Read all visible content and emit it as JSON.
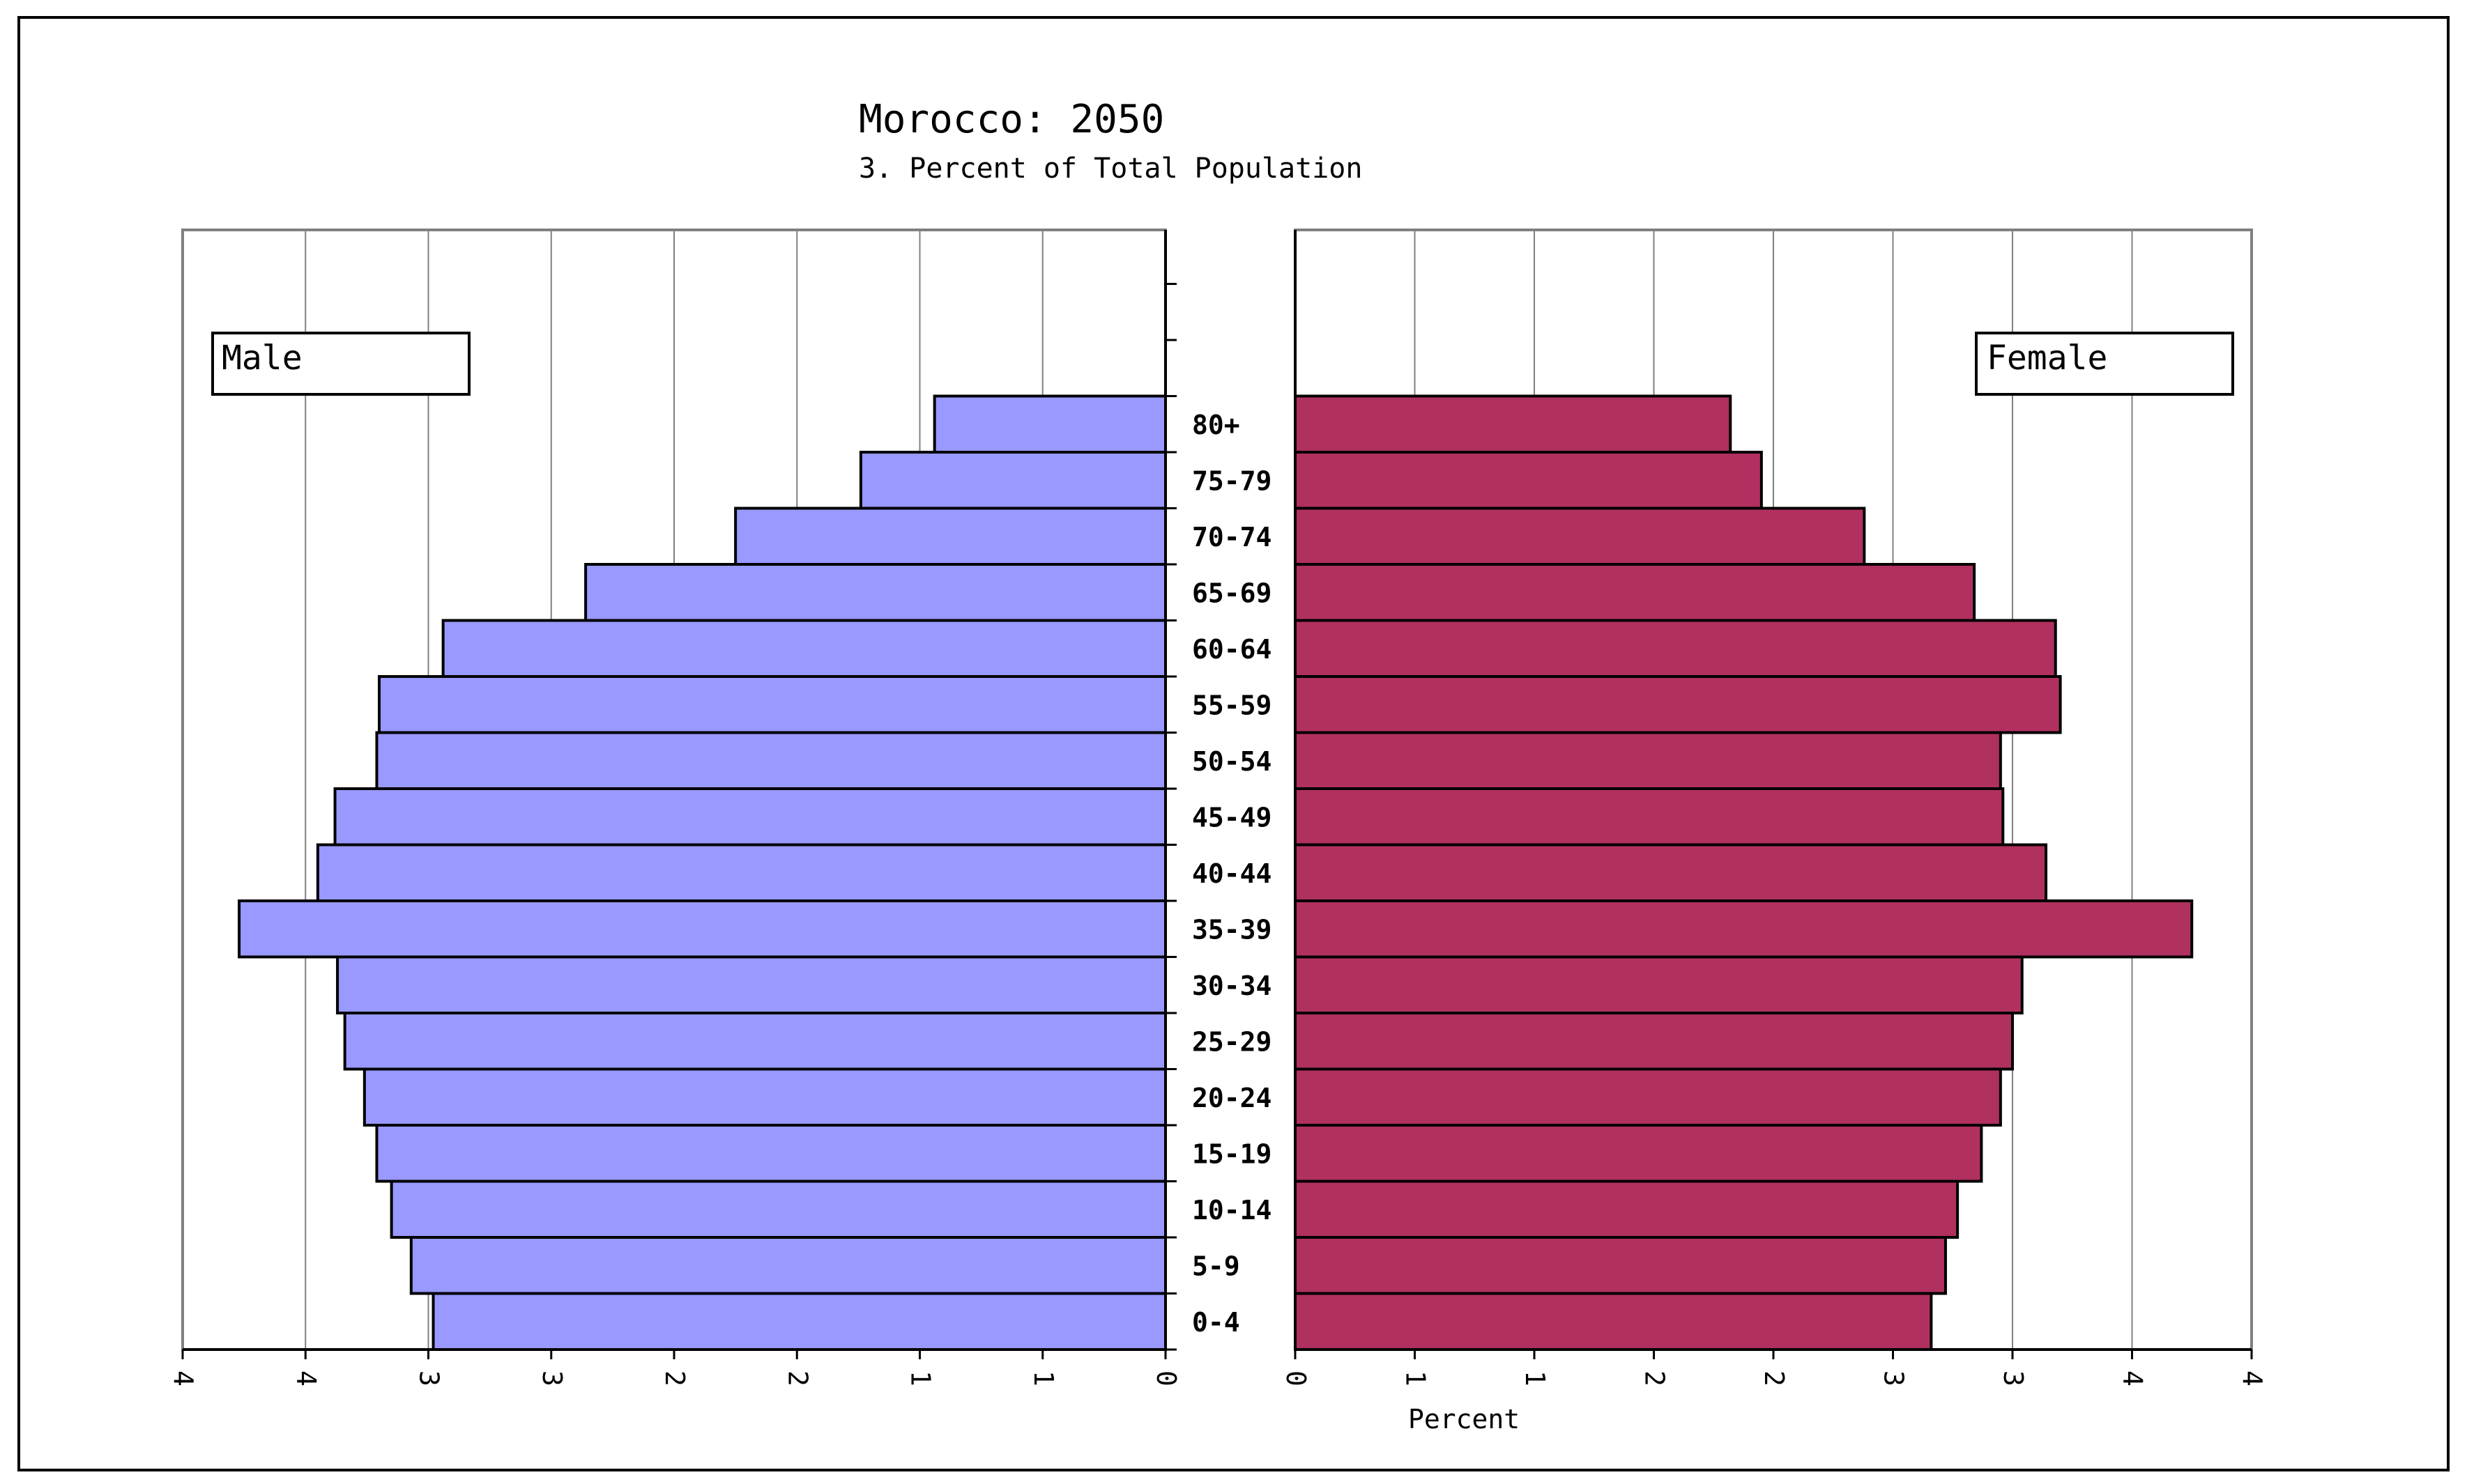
{
  "chart_data": {
    "type": "bar",
    "subtype": "population-pyramid",
    "title": "Morocco: 2050",
    "subtitle": "3. Percent of Total Population",
    "xlabel": "Percent",
    "ylabel": "",
    "age_groups": [
      "0-4",
      "5-9",
      "10-14",
      "15-19",
      "20-24",
      "25-29",
      "30-34",
      "35-39",
      "40-44",
      "45-49",
      "50-54",
      "55-59",
      "60-64",
      "65-69",
      "70-74",
      "75-79",
      "80+"
    ],
    "series": [
      {
        "name": "Male",
        "values": [
          2.98,
          3.07,
          3.15,
          3.21,
          3.26,
          3.34,
          3.37,
          3.77,
          3.45,
          3.38,
          3.21,
          3.2,
          2.94,
          2.36,
          1.75,
          1.24,
          0.94
        ]
      },
      {
        "name": "Female",
        "values": [
          2.66,
          2.72,
          2.77,
          2.87,
          2.95,
          3.0,
          3.04,
          3.75,
          3.14,
          2.96,
          2.95,
          3.2,
          3.18,
          2.84,
          2.38,
          1.95,
          1.82
        ]
      }
    ],
    "male_ticks": [
      "4",
      "4",
      "3",
      "3",
      "2",
      "2",
      "1",
      "1",
      "0"
    ],
    "female_ticks": [
      "0",
      "1",
      "1",
      "2",
      "2",
      "3",
      "3",
      "4",
      "4"
    ],
    "xlim": [
      0,
      4
    ],
    "legend": [
      "Male",
      "Female"
    ],
    "colors": {
      "male": "#9999ff",
      "female": "#b03060",
      "grid": "#808080",
      "frame": "#000000"
    }
  }
}
